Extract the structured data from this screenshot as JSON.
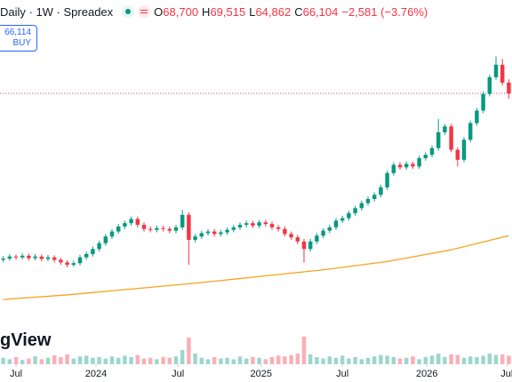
{
  "header": {
    "title": "Daily · 1W · Spreadex",
    "ohlc": [
      {
        "label": "O",
        "value": "68,700"
      },
      {
        "label": "H",
        "value": "69,515"
      },
      {
        "label": "L",
        "value": "64,862"
      },
      {
        "label": "C",
        "value": "66,104"
      }
    ],
    "change": "−2,581 (−3.76%)"
  },
  "order_box": {
    "price": "66,114",
    "action": "BUY"
  },
  "watermark": "gView",
  "chart_data": {
    "type": "candlestick",
    "up_color": "#089981",
    "down_color": "#f23645",
    "ma_color": "#f7a21b",
    "price_line_color": "#f7525f",
    "xlim": [
      -0.5,
      79.5
    ],
    "ylim": [
      5000,
      80000
    ],
    "volume_lim": [
      0,
      100
    ],
    "xticks": [
      {
        "value": 2,
        "label": "Jul"
      },
      {
        "value": 14.5,
        "label": "2024"
      },
      {
        "value": 27.3,
        "label": "Jul"
      },
      {
        "value": 40.3,
        "label": "2025"
      },
      {
        "value": 53,
        "label": "Jul"
      },
      {
        "value": 66.2,
        "label": "2026"
      },
      {
        "value": 78.7,
        "label": "Jul"
      }
    ],
    "candles": [
      [
        26200,
        27100,
        25700,
        26500
      ],
      [
        26500,
        27600,
        26000,
        27000
      ],
      [
        27000,
        27500,
        26200,
        26800
      ],
      [
        26800,
        27800,
        26300,
        27200
      ],
      [
        27200,
        27700,
        26000,
        26600
      ],
      [
        26600,
        27600,
        26100,
        27000
      ],
      [
        27000,
        27500,
        25800,
        26400
      ],
      [
        26400,
        27400,
        25900,
        26800
      ],
      [
        26800,
        27300,
        25600,
        26200
      ],
      [
        26200,
        26700,
        25000,
        25600
      ],
      [
        25600,
        26100,
        24400,
        25000
      ],
      [
        25000,
        26000,
        24500,
        25400
      ],
      [
        25400,
        27400,
        24900,
        26800
      ],
      [
        26800,
        28200,
        26200,
        27600
      ],
      [
        27600,
        29400,
        27000,
        28800
      ],
      [
        28800,
        30800,
        28200,
        30200
      ],
      [
        30200,
        32400,
        29600,
        31800
      ],
      [
        31800,
        33600,
        31200,
        33000
      ],
      [
        33000,
        34800,
        32400,
        34200
      ],
      [
        34200,
        35600,
        33600,
        35000
      ],
      [
        35000,
        36600,
        34400,
        36000
      ],
      [
        36000,
        36600,
        34000,
        34600
      ],
      [
        34600,
        35200,
        33000,
        33600
      ],
      [
        33600,
        34200,
        32800,
        33400
      ],
      [
        33400,
        34400,
        32800,
        33800
      ],
      [
        33800,
        34400,
        33000,
        33600
      ],
      [
        33600,
        34200,
        32600,
        33200
      ],
      [
        33200,
        34600,
        32600,
        34000
      ],
      [
        34000,
        38200,
        33400,
        37000
      ],
      [
        37000,
        37600,
        25000,
        31000
      ],
      [
        31000,
        32400,
        30400,
        31800
      ],
      [
        31800,
        33200,
        31200,
        32600
      ],
      [
        32600,
        33600,
        32000,
        33000
      ],
      [
        33000,
        33600,
        31800,
        32400
      ],
      [
        32400,
        33400,
        31800,
        32800
      ],
      [
        32800,
        34000,
        32200,
        33400
      ],
      [
        33400,
        34600,
        32800,
        34000
      ],
      [
        34000,
        35200,
        33400,
        34600
      ],
      [
        34600,
        35600,
        34000,
        35000
      ],
      [
        35000,
        35600,
        33800,
        34400
      ],
      [
        34400,
        35800,
        33800,
        35200
      ],
      [
        35200,
        35800,
        34200,
        34800
      ],
      [
        34800,
        35400,
        33400,
        34000
      ],
      [
        34000,
        34600,
        33000,
        33600
      ],
      [
        33600,
        34200,
        31800,
        32400
      ],
      [
        32400,
        33000,
        31000,
        31600
      ],
      [
        31600,
        32200,
        30000,
        30600
      ],
      [
        30600,
        31200,
        25500,
        28800
      ],
      [
        28800,
        31200,
        28200,
        30600
      ],
      [
        30600,
        32600,
        30000,
        32000
      ],
      [
        32000,
        33800,
        31400,
        33200
      ],
      [
        33200,
        34600,
        32600,
        34000
      ],
      [
        34000,
        36200,
        33400,
        35600
      ],
      [
        35600,
        36800,
        35000,
        36200
      ],
      [
        36200,
        38000,
        35600,
        37400
      ],
      [
        37400,
        39200,
        36800,
        38600
      ],
      [
        38600,
        40400,
        38000,
        39800
      ],
      [
        39800,
        41400,
        39200,
        40800
      ],
      [
        40800,
        42400,
        40200,
        41800
      ],
      [
        41800,
        44200,
        41200,
        43600
      ],
      [
        43600,
        47600,
        43000,
        47000
      ],
      [
        47000,
        49600,
        46400,
        49000
      ],
      [
        49000,
        49600,
        47800,
        48400
      ],
      [
        48400,
        49800,
        47800,
        49200
      ],
      [
        49200,
        49800,
        48000,
        48600
      ],
      [
        48600,
        51200,
        48000,
        50600
      ],
      [
        50600,
        52000,
        50000,
        51400
      ],
      [
        51400,
        53600,
        50800,
        53000
      ],
      [
        53000,
        60000,
        52400,
        56800
      ],
      [
        56800,
        58800,
        56200,
        58200
      ],
      [
        58200,
        58800,
        52000,
        52600
      ],
      [
        52600,
        53200,
        48600,
        50200
      ],
      [
        50200,
        55600,
        49600,
        55000
      ],
      [
        55000,
        59600,
        54400,
        59000
      ],
      [
        59000,
        62600,
        58400,
        62000
      ],
      [
        62000,
        66600,
        61400,
        66000
      ],
      [
        66000,
        70600,
        65400,
        70000
      ],
      [
        70000,
        75000,
        69400,
        73000
      ],
      [
        73000,
        74400,
        68000,
        68685
      ],
      [
        68700,
        69515,
        64862,
        66104
      ]
    ],
    "volumes": [
      18,
      14,
      20,
      12,
      16,
      22,
      14,
      18,
      25,
      20,
      28,
      16,
      22,
      24,
      18,
      20,
      16,
      22,
      18,
      24,
      20,
      26,
      16,
      18,
      14,
      20,
      18,
      22,
      40,
      75,
      30,
      18,
      14,
      20,
      16,
      18,
      14,
      22,
      16,
      20,
      18,
      14,
      20,
      24,
      22,
      26,
      30,
      78,
      28,
      20,
      16,
      22,
      18,
      24,
      16,
      20,
      14,
      18,
      22,
      26,
      24,
      20,
      16,
      18,
      22,
      14,
      20,
      24,
      30,
      20,
      28,
      26,
      18,
      22,
      20,
      24,
      30,
      26,
      28,
      24
    ],
    "ma": {
      "x": [
        0,
        10,
        20,
        30,
        40,
        50,
        60,
        70,
        79
      ],
      "values": [
        16700,
        17800,
        19200,
        20600,
        22200,
        23800,
        25800,
        28600,
        32000
      ]
    },
    "price_line": {
      "value": 66114
    }
  }
}
